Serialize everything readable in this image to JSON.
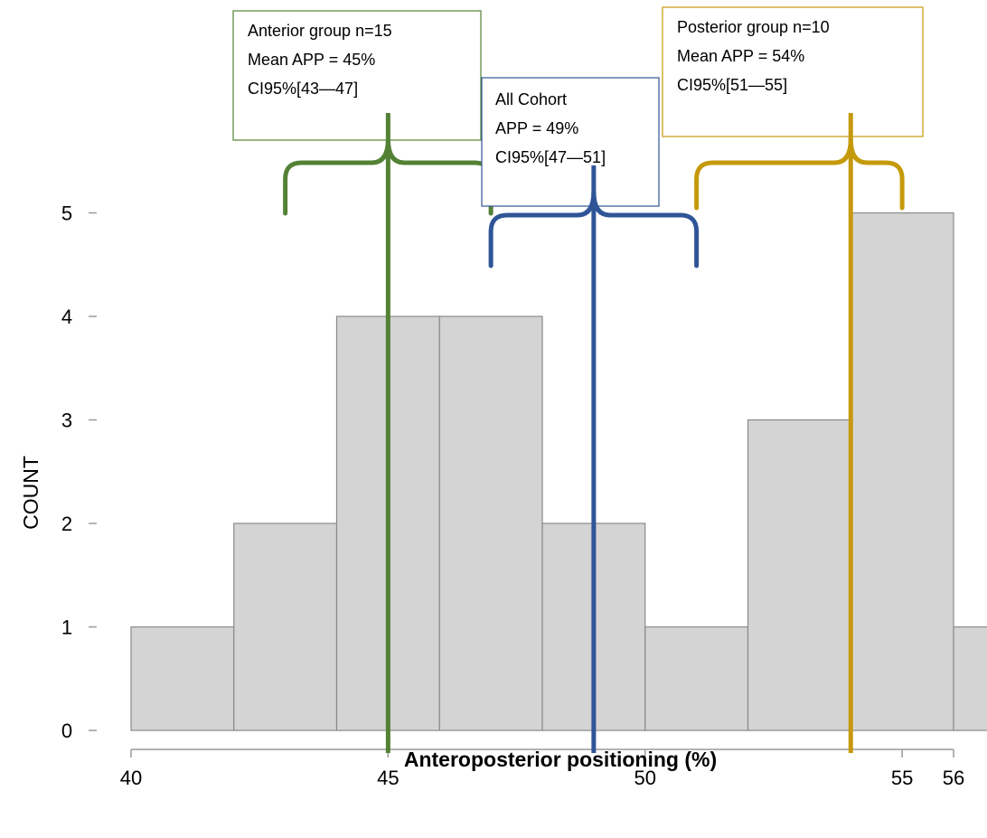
{
  "chart_data": {
    "type": "bar",
    "xlabel": "Anteroposterior positioning (%)",
    "ylabel": "COUNT",
    "ylim": [
      0,
      5
    ],
    "xlim": [
      40,
      56
    ],
    "x_ticks": [
      "40",
      "45",
      "50",
      "55",
      "56"
    ],
    "y_ticks": [
      "0",
      "1",
      "2",
      "3",
      "4",
      "5"
    ],
    "bins": [
      {
        "from": 40,
        "to": 42,
        "count": 1
      },
      {
        "from": 42,
        "to": 44,
        "count": 2
      },
      {
        "from": 44,
        "to": 46,
        "count": 4
      },
      {
        "from": 46,
        "to": 48,
        "count": 4
      },
      {
        "from": 48,
        "to": 50,
        "count": 2
      },
      {
        "from": 50,
        "to": 52,
        "count": 1
      },
      {
        "from": 52,
        "to": 54,
        "count": 3
      },
      {
        "from": 54,
        "to": 56,
        "count": 5
      },
      {
        "from": 56,
        "to": 58,
        "count": 1
      }
    ],
    "bar_color": "#d4d4d4",
    "annotations": [
      {
        "name": "anterior",
        "lines": [
          "Anterior group n=15",
          "Mean APP = 45%",
          "CI95%[43—47]"
        ],
        "mean": 45,
        "ci": [
          43,
          47
        ],
        "color": "#538135"
      },
      {
        "name": "all-cohort",
        "lines": [
          "All Cohort",
          "APP = 49%",
          "CI95%[47—51]"
        ],
        "mean": 49,
        "ci": [
          47,
          51
        ],
        "color": "#2f5597"
      },
      {
        "name": "posterior",
        "lines": [
          "Posterior group n=10",
          "Mean APP = 54%",
          "CI95%[51—55]"
        ],
        "mean": 54,
        "ci": [
          51,
          55
        ],
        "color": "#c59a0a"
      }
    ]
  }
}
